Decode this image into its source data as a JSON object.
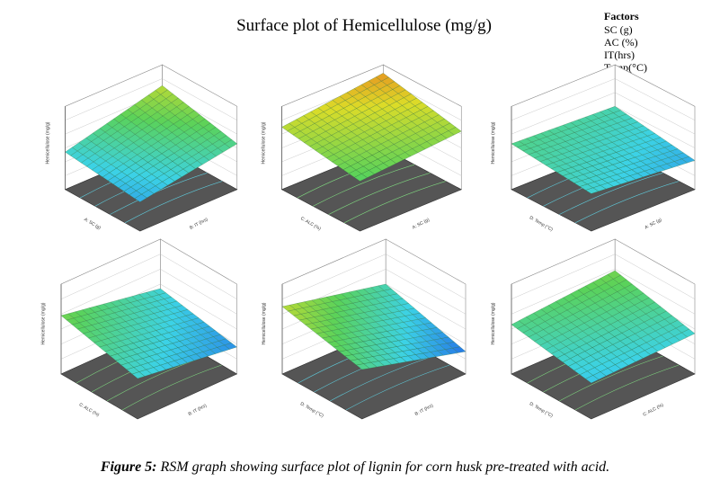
{
  "title": "Surface plot of Hemicellulose (mg/g)",
  "factors": {
    "heading": "Factors",
    "items": [
      "SC (g)",
      "AC (%)",
      "IT(hrs)",
      "Temp(°C)"
    ]
  },
  "panels": [
    {
      "z_label": "Hemicellulose (mg/g)",
      "x_label": "A: SC (g)",
      "y_label": "B: IT (hrs)"
    },
    {
      "z_label": "Hemicellulose (mg/g)",
      "x_label": "C: ALC (%)",
      "y_label": "A: SC (g)"
    },
    {
      "z_label": "Hemicellulose (mg/g)",
      "x_label": "D: Temp (°C)",
      "y_label": "A: SC (g)"
    },
    {
      "z_label": "Hemicellulose (mg/g)",
      "x_label": "C: ALC (%)",
      "y_label": "B: IT (hrs)"
    },
    {
      "z_label": "Hemicellulose (mg/g)",
      "x_label": "D: Temp (°C)",
      "y_label": "B: IT (hrs)"
    },
    {
      "z_label": "Hemicellulose (mg/g)",
      "x_label": "D: Temp (°C)",
      "y_label": "C: ALC (%)"
    }
  ],
  "caption": {
    "label": "Figure 5:",
    "text": "RSM graph showing surface plot of lignin for corn husk pre-treated with acid."
  }
}
